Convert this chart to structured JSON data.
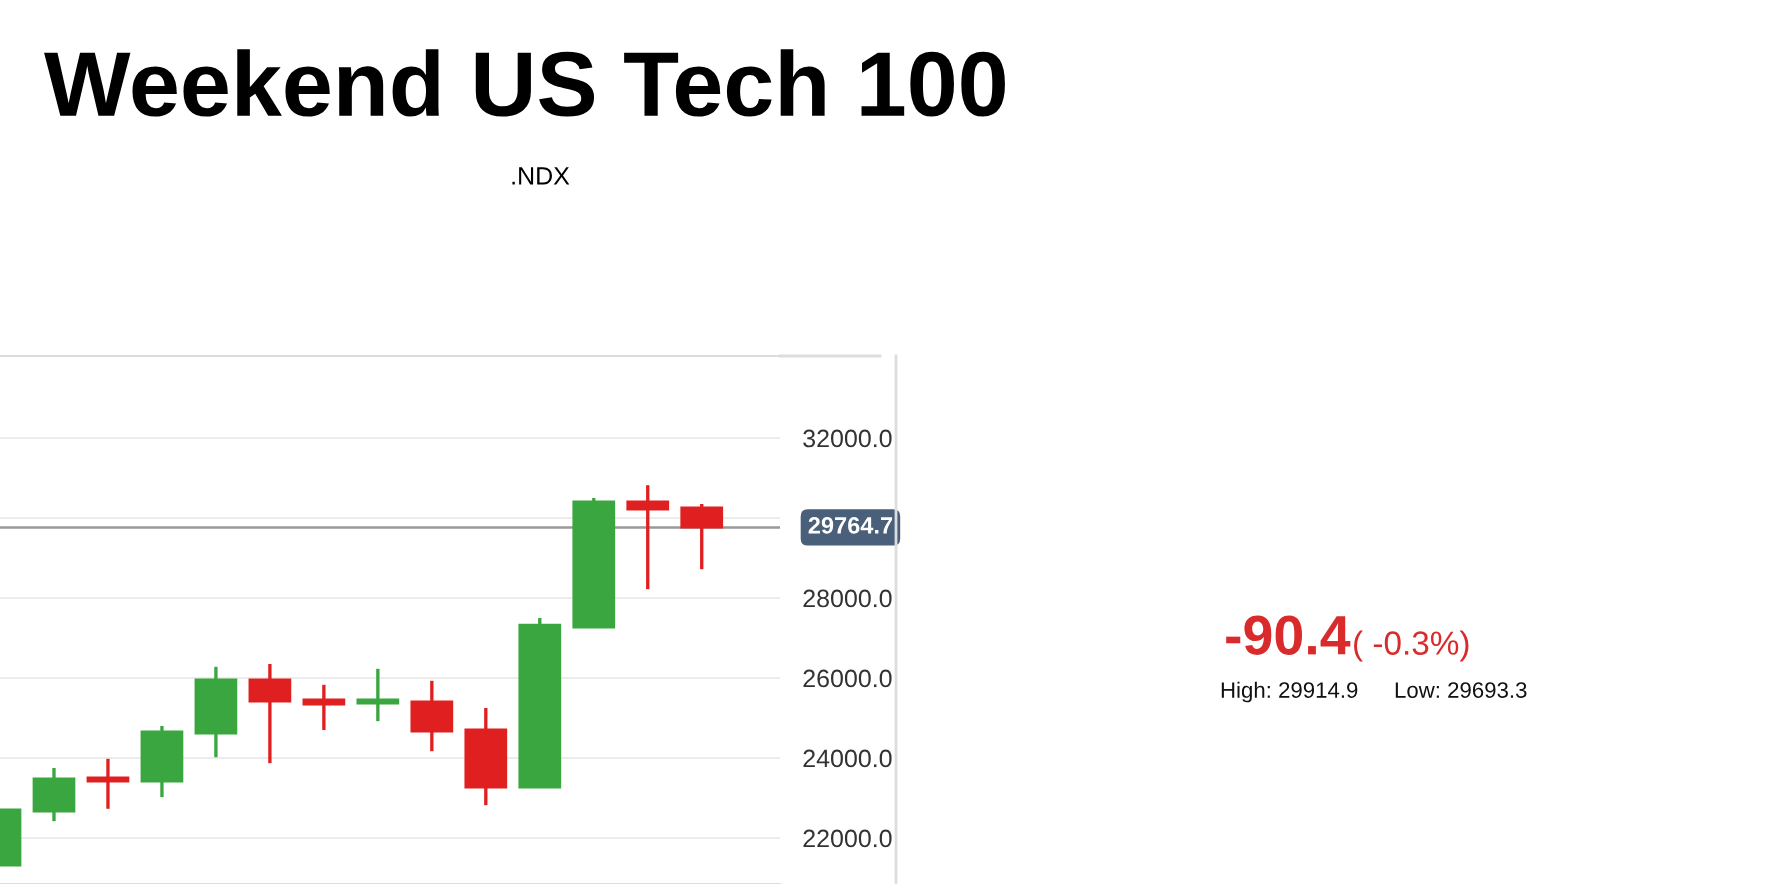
{
  "chart_data": {
    "type": "candlestick",
    "title": "Weekend US Tech 100",
    "subtitle": ".NDX",
    "categories": [
      null,
      null,
      null,
      null,
      null,
      null,
      null,
      null,
      null,
      null,
      null,
      null,
      null,
      null
    ],
    "ohlc": [
      [
        21320,
        22700,
        21320,
        22700
      ],
      [
        22670,
        23750,
        22420,
        23480
      ],
      [
        23500,
        23980,
        22730,
        23420
      ],
      [
        23420,
        24800,
        23020,
        24650
      ],
      [
        24620,
        26280,
        24020,
        25950
      ],
      [
        25950,
        26350,
        23870,
        25420
      ],
      [
        25450,
        25830,
        24700,
        25350
      ],
      [
        25370,
        26230,
        24920,
        25450
      ],
      [
        25400,
        25930,
        24170,
        24670
      ],
      [
        24700,
        25250,
        22820,
        23270
      ],
      [
        23270,
        27500,
        23270,
        27320
      ],
      [
        27270,
        30500,
        27270,
        30400
      ],
      [
        30400,
        30820,
        28220,
        30220
      ],
      [
        30250,
        30350,
        28720,
        29770
      ]
    ],
    "colors": [
      "#3aa63f",
      "#3aa63f",
      "#e02020",
      "#3aa63f",
      "#3aa63f",
      "#e02020",
      "#e02020",
      "#3aa63f",
      "#e02020",
      "#e02020",
      "#3aa63f",
      "#3aa63f",
      "#e02020",
      "#e02020"
    ],
    "ylim": [
      20850,
      34050
    ],
    "yticks": [
      {
        "value": 22000,
        "label": "22000.0"
      },
      {
        "value": 24000,
        "label": "24000.0"
      },
      {
        "value": 26000,
        "label": "26000.0"
      },
      {
        "value": 28000,
        "label": "28000.0"
      },
      {
        "value": 30000,
        "label": null
      },
      {
        "value": 32000,
        "label": "32000.0"
      }
    ],
    "grid": "y",
    "tick_labels": "y",
    "ref_lines": [
      {
        "axis": "y",
        "value": 29764.7,
        "label": "29764.7",
        "color": "#999999"
      }
    ],
    "annotations": [
      "-90.4",
      "( -0.3%)",
      "High: 29914.9",
      "Low: 29693.3"
    ]
  }
}
